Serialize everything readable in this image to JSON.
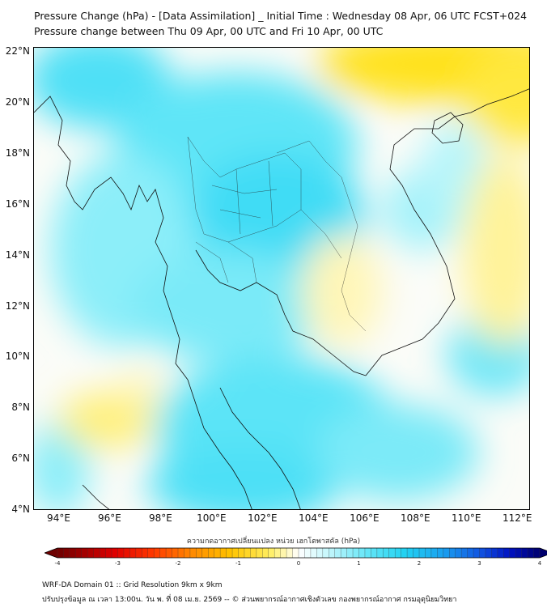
{
  "header": {
    "title": "Pressure Change (hPa) - [Data Assimilation] _ Initial Time : Wednesday 08 Apr, 06 UTC FCST+024",
    "subtitle": "Pressure change between Thu 09 Apr, 00 UTC and Fri 10 Apr, 00 UTC"
  },
  "map": {
    "lon_range": [
      93,
      112.5
    ],
    "lat_range": [
      4,
      22.2
    ],
    "lat_ticks": [
      "22°N",
      "20°N",
      "18°N",
      "16°N",
      "14°N",
      "12°N",
      "10°N",
      "8°N",
      "6°N",
      "4°N"
    ],
    "lon_ticks": [
      "94°E",
      "96°E",
      "98°E",
      "100°E",
      "102°E",
      "104°E",
      "106°E",
      "108°E",
      "110°E",
      "112°E"
    ],
    "colors": {
      "positive": "#33ddf5",
      "negative": "#ffe000",
      "neutral": "#fbfcf8",
      "coast": "#000000"
    }
  },
  "colorbar": {
    "label": "ความกดอากาศเปลี่ยนแปลง หน่วย เฮกโตพาสคัล (hPa)",
    "range": [
      -4,
      4
    ],
    "ticks": [
      "-4",
      "-3",
      "-2",
      "-1",
      "0",
      "1",
      "2",
      "3",
      "4"
    ]
  },
  "footer": {
    "line1": "WRF-DA Domain 01 :: Grid Resolution 9km x 9km",
    "line2": "ปรับปรุงข้อมูล ณ เวลา 13:00น. วัน พ. ที่ 08 เม.ย. 2569 -- © ส่วนพยากรณ์อากาศเชิงตัวเลข กองพยากรณ์อากาศ กรมอุตุนิยมวิทยา"
  }
}
